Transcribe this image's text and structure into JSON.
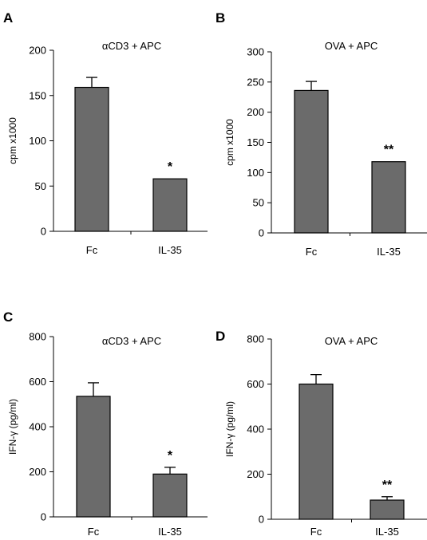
{
  "chart_data": [
    {
      "panel": "A",
      "type": "bar",
      "title": "αCD3 + APC",
      "ylabel": "cpm x1000",
      "xlabel": "",
      "categories": [
        "Fc",
        "IL-35"
      ],
      "values": [
        159,
        58
      ],
      "errors": [
        11,
        0
      ],
      "significance": [
        "",
        "*"
      ],
      "ylim": [
        0,
        200
      ],
      "yticks": [
        0,
        50,
        100,
        150,
        200
      ],
      "bar_color": "#6b6b6b",
      "grid": false,
      "legend": "none"
    },
    {
      "panel": "B",
      "type": "bar",
      "title": "OVA + APC",
      "ylabel": "cpm x1000",
      "xlabel": "",
      "categories": [
        "Fc",
        "IL-35"
      ],
      "values": [
        236,
        118
      ],
      "errors": [
        15,
        0
      ],
      "significance": [
        "",
        "**"
      ],
      "ylim": [
        0,
        300
      ],
      "yticks": [
        0,
        50,
        100,
        150,
        200,
        250,
        300
      ],
      "bar_color": "#6b6b6b",
      "grid": false,
      "legend": "none"
    },
    {
      "panel": "C",
      "type": "bar",
      "title": "αCD3 + APC",
      "ylabel": "IFN-γ (pg/ml)",
      "xlabel": "",
      "categories": [
        "Fc",
        "IL-35"
      ],
      "values": [
        535,
        190
      ],
      "errors": [
        60,
        30
      ],
      "significance": [
        "",
        "*"
      ],
      "ylim": [
        0,
        800
      ],
      "yticks": [
        0,
        200,
        400,
        600,
        800
      ],
      "bar_color": "#6b6b6b",
      "grid": false,
      "legend": "none"
    },
    {
      "panel": "D",
      "type": "bar",
      "title": "OVA + APC",
      "ylabel": "IFN-γ (pg/ml)",
      "xlabel": "",
      "categories": [
        "Fc",
        "IL-35"
      ],
      "values": [
        600,
        85
      ],
      "errors": [
        42,
        15
      ],
      "significance": [
        "",
        "**"
      ],
      "ylim": [
        0,
        800
      ],
      "yticks": [
        0,
        200,
        400,
        600,
        800
      ],
      "bar_color": "#6b6b6b",
      "grid": false,
      "legend": "none"
    }
  ]
}
